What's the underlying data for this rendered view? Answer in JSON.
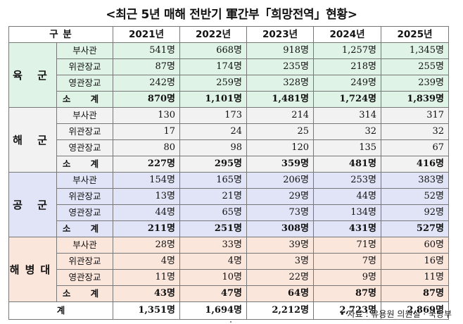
{
  "title": "<최근 5년 매해 전반기 軍간부「희망전역」현황>",
  "header": {
    "category": "구          분",
    "years": [
      "2021년",
      "2022년",
      "2023년",
      "2024년",
      "2025년"
    ]
  },
  "branches": [
    {
      "name": "육 군",
      "rows": [
        {
          "label": "부사관",
          "values": [
            "541명",
            "668명",
            "918명",
            "1,257명",
            "1,345명"
          ]
        },
        {
          "label": "위관장교",
          "values": [
            "87명",
            "174명",
            "235명",
            "218명",
            "255명"
          ]
        },
        {
          "label": "영관장교",
          "values": [
            "242명",
            "259명",
            "328명",
            "249명",
            "239명"
          ]
        },
        {
          "label": "소 계",
          "values": [
            "870명",
            "1,101명",
            "1,481명",
            "1,724명",
            "1,839명"
          ]
        }
      ]
    },
    {
      "name": "해 군",
      "rows": [
        {
          "label": "부사관",
          "values": [
            "130",
            "173",
            "214",
            "314",
            "317"
          ]
        },
        {
          "label": "위관장교",
          "values": [
            "17",
            "24",
            "25",
            "32",
            "32"
          ]
        },
        {
          "label": "영관장교",
          "values": [
            "80",
            "98",
            "120",
            "135",
            "67"
          ]
        },
        {
          "label": "소 계",
          "values": [
            "227명",
            "295명",
            "359명",
            "481명",
            "416명"
          ]
        }
      ]
    },
    {
      "name": "공 군",
      "rows": [
        {
          "label": "부사관",
          "values": [
            "154명",
            "165명",
            "206명",
            "253명",
            "383명"
          ]
        },
        {
          "label": "위관장교",
          "values": [
            "13명",
            "21명",
            "29명",
            "44명",
            "52명"
          ]
        },
        {
          "label": "영관장교",
          "values": [
            "44명",
            "65명",
            "73명",
            "134명",
            "92명"
          ]
        },
        {
          "label": "소 계",
          "values": [
            "211명",
            "251명",
            "308명",
            "431명",
            "527명"
          ]
        }
      ]
    },
    {
      "name": "해병대",
      "rows": [
        {
          "label": "부사관",
          "values": [
            "28명",
            "33명",
            "39명",
            "71명",
            "60명"
          ]
        },
        {
          "label": "위관장교",
          "values": [
            "4명",
            "4명",
            "3명",
            "7명",
            "16명"
          ]
        },
        {
          "label": "영관장교",
          "values": [
            "11명",
            "10명",
            "22명",
            "9명",
            "11명"
          ]
        },
        {
          "label": "소 계",
          "values": [
            "43명",
            "47명",
            "64명",
            "87명",
            "87명"
          ]
        }
      ]
    }
  ],
  "total": {
    "label": "계",
    "values": [
      "1,351명",
      "1,694명",
      "2,212명",
      "2,723명",
      "2,869명"
    ]
  },
  "source": "• 자료 : 유용원 의원실 · 국방부",
  "colors": {
    "army": "#dff3e6",
    "navy": "#f2f2f2",
    "air": "#e0e4f6",
    "coast": "#fbe6dc"
  }
}
